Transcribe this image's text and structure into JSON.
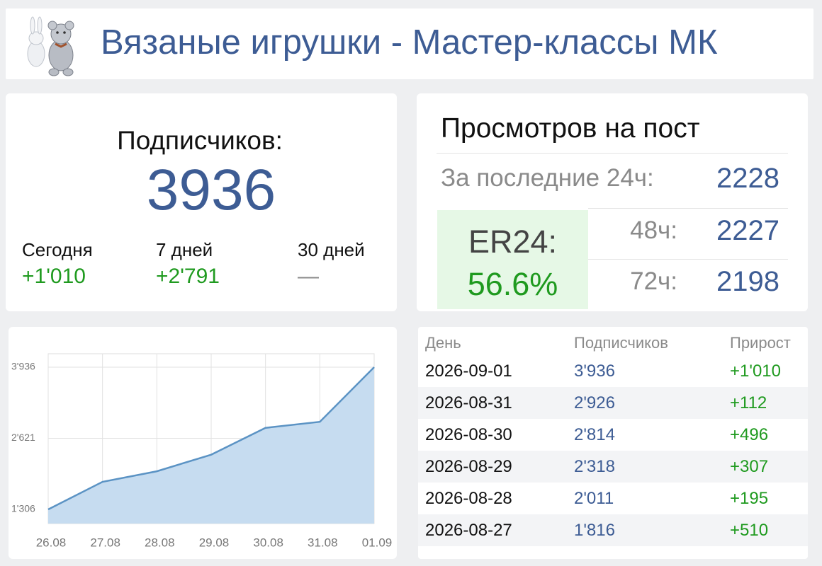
{
  "header": {
    "title": "Вязаные игрушки - Мастер-классы МК"
  },
  "subscribers": {
    "label": "Подписчиков:",
    "count": 3936,
    "stats": [
      {
        "label": "Сегодня",
        "value": "+1'010"
      },
      {
        "label": "7 дней",
        "value": "+2'791"
      },
      {
        "label": "30 дней",
        "value": "—"
      }
    ]
  },
  "views": {
    "title": "Просмотров на пост",
    "rows": [
      {
        "label": "За последние 24ч:",
        "value": 2228
      },
      {
        "label": "48ч:",
        "value": 2227
      },
      {
        "label": "72ч:",
        "value": 2198
      }
    ],
    "er": {
      "label": "ER24:",
      "value": "56.6%"
    }
  },
  "chart_data": {
    "type": "area",
    "categories": [
      "26.08",
      "27.08",
      "28.08",
      "29.08",
      "30.08",
      "31.08",
      "01.09"
    ],
    "values": [
      1306,
      1816,
      2011,
      2318,
      2814,
      2926,
      3936
    ],
    "color": "#5b93c4",
    "fill": "#c6dcf0",
    "ylim": [
      1044,
      4185
    ],
    "yticks": [
      {
        "value": 1306,
        "label": "1'306"
      },
      {
        "value": 2621,
        "label": "2'621"
      },
      {
        "value": 3936,
        "label": "3'936"
      }
    ],
    "grid": true
  },
  "table": {
    "columns": [
      "День",
      "Подписчиков",
      "Прирост"
    ],
    "rows": [
      [
        "2026-09-01",
        "3'936",
        "+1'010"
      ],
      [
        "2026-08-31",
        "2'926",
        "+112"
      ],
      [
        "2026-08-30",
        "2'814",
        "+496"
      ],
      [
        "2026-08-29",
        "2'318",
        "+307"
      ],
      [
        "2026-08-28",
        "2'011",
        "+195"
      ],
      [
        "2026-08-27",
        "1'816",
        "+510"
      ]
    ]
  }
}
